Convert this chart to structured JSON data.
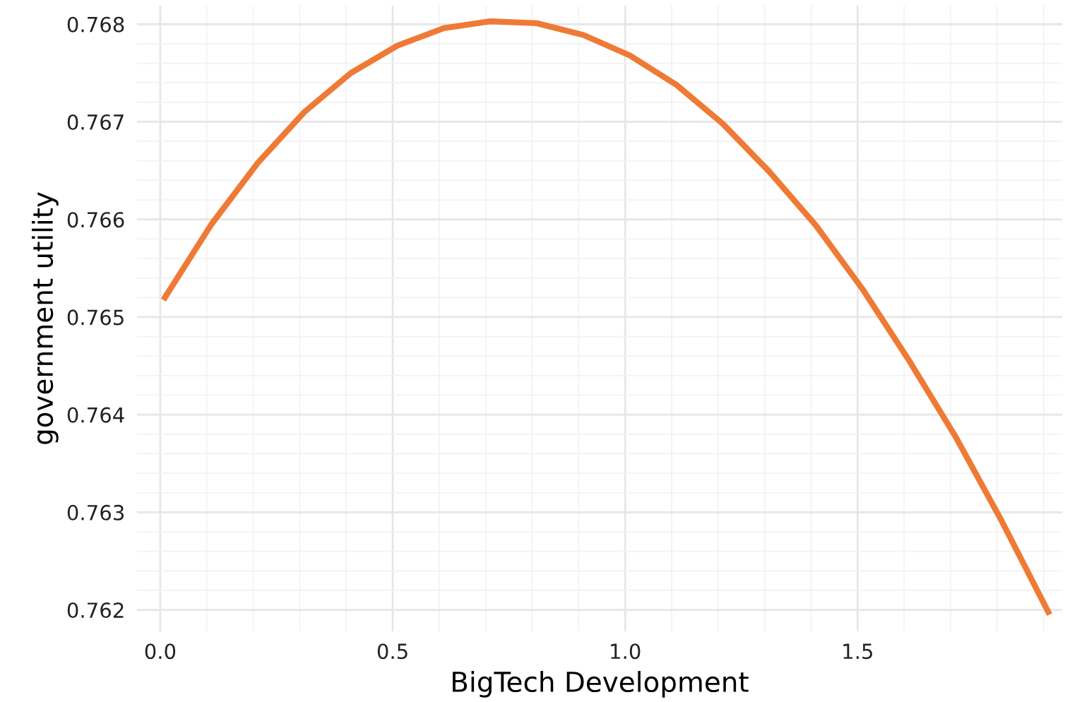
{
  "chart_data": {
    "type": "line",
    "xlabel": "BigTech Development",
    "ylabel": "government utility",
    "x": [
      0.01,
      0.11,
      0.21,
      0.31,
      0.41,
      0.51,
      0.61,
      0.71,
      0.81,
      0.91,
      1.01,
      1.11,
      1.21,
      1.31,
      1.41,
      1.51,
      1.61,
      1.71,
      1.81,
      1.91
    ],
    "series": [
      {
        "color": "#ef7a35",
        "values": [
          0.7652,
          0.76595,
          0.76658,
          0.7671,
          0.7675,
          0.76778,
          0.76796,
          0.76803,
          0.76801,
          0.76789,
          0.76768,
          0.76738,
          0.76698,
          0.76649,
          0.76594,
          0.76529,
          0.76456,
          0.76378,
          0.76291,
          0.76198
        ]
      }
    ],
    "xlim": [
      -0.05,
      1.94
    ],
    "ylim": [
      0.76178,
      0.76819
    ],
    "xticks": [
      {
        "value": 0,
        "label": "0.0"
      },
      {
        "value": 0.1,
        "label": null
      },
      {
        "value": 0.2,
        "label": null
      },
      {
        "value": 0.3,
        "label": null
      },
      {
        "value": 0.4,
        "label": null
      },
      0.5,
      {
        "value": 0.6,
        "label": null
      },
      {
        "value": 0.7,
        "label": null
      },
      {
        "value": 0.8,
        "label": null
      },
      {
        "value": 0.9,
        "label": null
      },
      {
        "value": 1,
        "label": "1.0"
      },
      {
        "value": 1.1,
        "label": null
      },
      {
        "value": 1.2,
        "label": null
      },
      {
        "value": 1.3,
        "label": null
      },
      {
        "value": 1.4,
        "label": null
      },
      1.5,
      {
        "value": 1.6,
        "label": null
      },
      {
        "value": 1.7,
        "label": null
      },
      {
        "value": 1.8,
        "label": null
      },
      {
        "value": 1.9,
        "label": null
      }
    ],
    "yticks": [
      0.762,
      {
        "value": 0.7622,
        "label": null
      },
      {
        "value": 0.7624,
        "label": null
      },
      {
        "value": 0.7626,
        "label": null
      },
      {
        "value": 0.7628,
        "label": null
      },
      0.763,
      {
        "value": 0.7632,
        "label": null
      },
      {
        "value": 0.7634,
        "label": null
      },
      {
        "value": 0.7636,
        "label": null
      },
      {
        "value": 0.7638,
        "label": null
      },
      0.764,
      {
        "value": 0.7642,
        "label": null
      },
      {
        "value": 0.7644,
        "label": null
      },
      {
        "value": 0.7646,
        "label": null
      },
      {
        "value": 0.7648,
        "label": null
      },
      0.765,
      {
        "value": 0.7652,
        "label": null
      },
      {
        "value": 0.7654,
        "label": null
      },
      {
        "value": 0.7656,
        "label": null
      },
      {
        "value": 0.7658,
        "label": null
      },
      0.766,
      {
        "value": 0.7662,
        "label": null
      },
      {
        "value": 0.7664,
        "label": null
      },
      {
        "value": 0.7666,
        "label": null
      },
      {
        "value": 0.7668,
        "label": null
      },
      0.767,
      {
        "value": 0.7672,
        "label": null
      },
      {
        "value": 0.7674,
        "label": null
      },
      {
        "value": 0.7676,
        "label": null
      },
      {
        "value": 0.7678,
        "label": null
      },
      0.768
    ],
    "grid": true,
    "legend": false,
    "marker": "none",
    "line_style": "solid"
  }
}
